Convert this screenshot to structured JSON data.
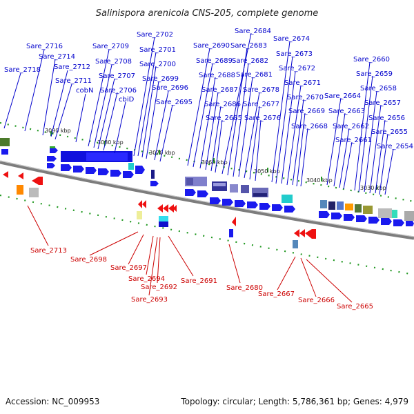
{
  "title": "Salinispora arenicola CNS-205, complete genome",
  "accession": "Accession: NC_009953",
  "summary": "Topology: circular; Length: 5,786,361 bp; Genes: 4,979",
  "colors": {
    "forward_label": "#0000cc",
    "reverse_label": "#cc0000",
    "forward_gene": "#1a1aee",
    "reverse_gene": "#ee1111",
    "backbone": "#8a8a8a",
    "tick_dot": "#229922"
  },
  "ticks": [
    "3090 kbp",
    "3080 kbp",
    "3070 kbp",
    "3060 kbp",
    "3050 kbp",
    "3040 kbp",
    "3030 kbp"
  ],
  "forward_labels": [
    "Sare_2718",
    "Sare_2716",
    "Sare_2714",
    "Sare_2712",
    "Sare_2711",
    "cobN",
    "Sare_2709",
    "Sare_2708",
    "Sare_2707",
    "Sare_2706",
    "cbiD",
    "Sare_2702",
    "Sare_2701",
    "Sare_2700",
    "Sare_2699",
    "Sare_2696",
    "Sare_2695",
    "Sare_2690",
    "Sare_2689",
    "Sare_2688",
    "Sare_2687",
    "Sare_2686",
    "Sare_2685",
    "Sare_2684",
    "Sare_2683",
    "Sare_2682",
    "Sare_2681",
    "Sare_2678",
    "Sare_2677",
    "Sare_2676",
    "Sare_2674",
    "Sare_2673",
    "Sare_2672",
    "Sare_2671",
    "Sare_2670",
    "Sare_2669",
    "Sare_2668",
    "Sare_2664",
    "Sare_2663",
    "Sare_2662",
    "Sare_2661",
    "Sare_2660",
    "Sare_2659",
    "Sare_2658",
    "Sare_2657",
    "Sare_2656",
    "Sare_2655",
    "Sare_2654"
  ],
  "reverse_labels": [
    "Sare_2713",
    "Sare_2698",
    "Sare_2697",
    "Sare_2694",
    "Sare_2692",
    "Sare_2693",
    "Sare_2691",
    "Sare_2680",
    "Sare_2667",
    "Sare_2666",
    "Sare_2665"
  ]
}
